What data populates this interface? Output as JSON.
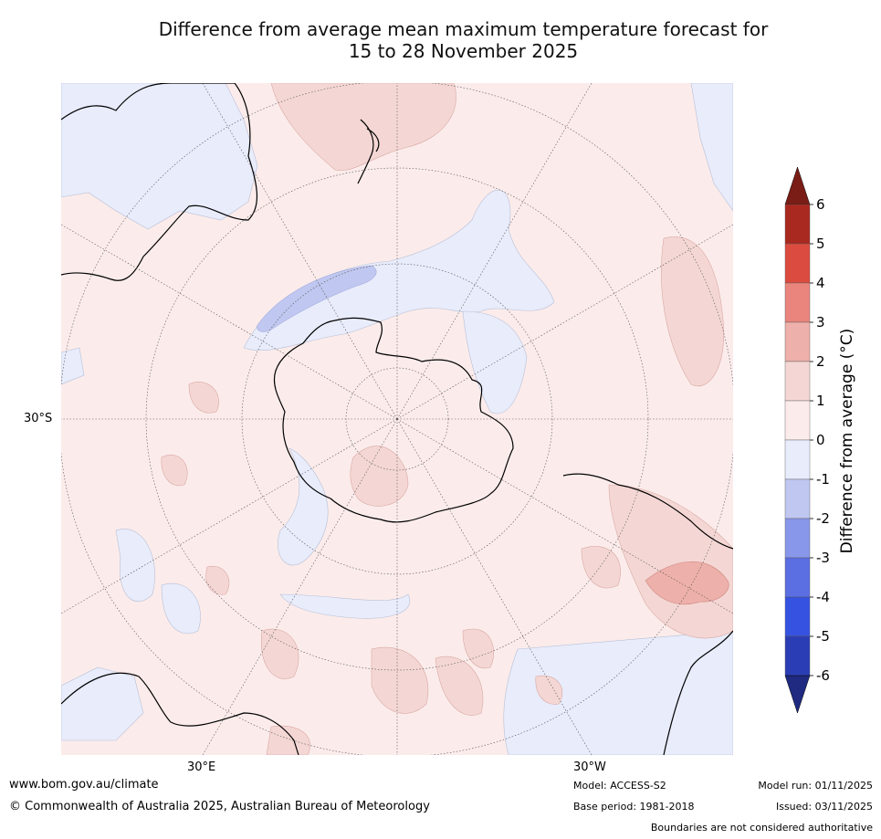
{
  "title": {
    "line1": "Difference from average mean maximum temperature forecast for",
    "line2": "15 to 28 November 2025"
  },
  "map": {
    "projection": "south-polar-stereographic",
    "lat_label": "30°S",
    "lon_labels": [
      "30°E",
      "30°W"
    ]
  },
  "colorbar": {
    "label": "Difference from average (°C)",
    "ticks": [
      "6",
      "5",
      "4",
      "3",
      "2",
      "1",
      "0",
      "-1",
      "-2",
      "-3",
      "-4",
      "-5",
      "-6"
    ],
    "bins": [
      {
        "range": "5 to 6",
        "color": "#a9281f"
      },
      {
        "range": "4 to 5",
        "color": "#dc4b3f"
      },
      {
        "range": "3 to 4",
        "color": "#e9857c"
      },
      {
        "range": "2 to 3",
        "color": "#eeb0aa"
      },
      {
        "range": "1 to 2",
        "color": "#f4d7d4"
      },
      {
        "range": "0 to 1",
        "color": "#fbeceb"
      },
      {
        "range": "-1 to 0",
        "color": "#e8ecfb"
      },
      {
        "range": "-2 to -1",
        "color": "#c0c7f0"
      },
      {
        "range": "-3 to -2",
        "color": "#8897ea"
      },
      {
        "range": "-4 to -3",
        "color": "#5b6ee2"
      },
      {
        "range": "-5 to -4",
        "color": "#3652e0"
      },
      {
        "range": "-6 to -5",
        "color": "#2a3db4"
      }
    ],
    "extend_high_color": "#7a1d17",
    "extend_low_color": "#1f2a80"
  },
  "footer": {
    "website": "www.bom.gov.au/climate",
    "copyright": "© Commonwealth of Australia 2025, Australian Bureau of Meteorology",
    "model": "Model: ACCESS-S2",
    "base_period": "Base period: 1981-2018",
    "model_run": "Model run: 01/11/2025",
    "issued": "Issued: 03/11/2025",
    "disclaimer": "Boundaries are not considered authoritative"
  }
}
